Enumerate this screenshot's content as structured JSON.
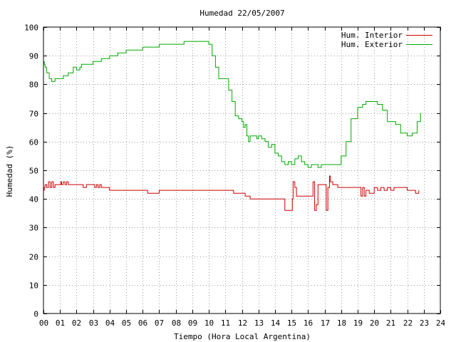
{
  "chart_data": {
    "type": "line",
    "title": "Humedad 22/05/2007",
    "xlabel": "Tiempo (Hora Local Argentina)",
    "ylabel": "Humedad (%)",
    "xlim": [
      0,
      24
    ],
    "ylim": [
      0,
      100
    ],
    "grid": true,
    "legend_position": "top-right",
    "x_ticks": [
      "00",
      "01",
      "02",
      "03",
      "04",
      "05",
      "06",
      "07",
      "08",
      "09",
      "10",
      "11",
      "12",
      "13",
      "14",
      "15",
      "16",
      "17",
      "18",
      "19",
      "20",
      "21",
      "22",
      "23",
      "24"
    ],
    "y_ticks": [
      "0",
      "10",
      "20",
      "30",
      "40",
      "50",
      "60",
      "70",
      "80",
      "90",
      "100"
    ],
    "series": [
      {
        "name": "Hum. Interior",
        "color": "#cc0000",
        "x": [
          0.0,
          0.05,
          0.1,
          0.2,
          0.3,
          0.4,
          0.5,
          0.6,
          0.7,
          1.0,
          1.05,
          1.1,
          1.2,
          1.3,
          1.4,
          1.5,
          1.6,
          2.0,
          2.4,
          2.6,
          3.0,
          3.1,
          3.2,
          3.3,
          3.4,
          3.5,
          3.6,
          4.0,
          6.0,
          6.3,
          7.0,
          8.0,
          9.0,
          10.0,
          11.0,
          11.5,
          12.0,
          12.2,
          12.5,
          13.0,
          14.0,
          14.5,
          14.6,
          15.0,
          15.05,
          15.1,
          15.2,
          15.3,
          15.5,
          15.8,
          16.0,
          16.1,
          16.2,
          16.3,
          16.4,
          16.5,
          16.6,
          17.0,
          17.1,
          17.2,
          17.3,
          17.35,
          17.5,
          17.8,
          18.0,
          18.5,
          19.0,
          19.2,
          19.3,
          19.4,
          19.5,
          19.7,
          20.0,
          20.2,
          20.4,
          20.6,
          20.8,
          21.0,
          21.2,
          21.5,
          21.8,
          22.0,
          22.3,
          22.5,
          22.7
        ],
        "y": [
          43,
          44,
          45,
          44,
          46,
          44,
          46,
          44,
          45,
          45,
          46,
          45,
          46,
          45,
          46,
          45,
          45,
          45,
          44,
          45,
          45,
          44,
          45,
          44,
          45,
          44,
          44,
          43,
          43,
          42,
          43,
          43,
          43,
          43,
          43,
          42,
          42,
          41,
          40,
          40,
          40,
          40,
          36,
          36,
          40,
          46,
          44,
          41,
          41,
          41,
          41,
          41,
          41,
          46,
          36,
          38,
          45,
          45,
          36,
          44,
          48,
          46,
          45,
          44,
          44,
          44,
          44,
          41,
          44,
          41,
          43,
          42,
          44,
          43,
          44,
          43,
          44,
          43,
          44,
          44,
          44,
          43,
          43,
          42,
          43
        ]
      },
      {
        "name": "Hum. Exterior",
        "color": "#00aa00",
        "x": [
          0.0,
          0.05,
          0.1,
          0.2,
          0.35,
          0.5,
          0.7,
          1.0,
          1.2,
          1.5,
          1.8,
          2.0,
          2.2,
          2.3,
          2.5,
          3.0,
          3.5,
          4.0,
          4.5,
          5.0,
          5.5,
          6.0,
          6.5,
          7.0,
          7.5,
          8.0,
          8.5,
          9.0,
          9.5,
          10.0,
          10.2,
          10.4,
          10.6,
          10.8,
          11.0,
          11.2,
          11.4,
          11.6,
          11.8,
          12.0,
          12.1,
          12.2,
          12.3,
          12.4,
          12.5,
          12.7,
          12.9,
          13.0,
          13.2,
          13.4,
          13.6,
          13.8,
          14.0,
          14.2,
          14.4,
          14.6,
          14.8,
          15.0,
          15.2,
          15.4,
          15.6,
          15.8,
          16.0,
          16.2,
          16.4,
          16.6,
          16.8,
          17.0,
          17.5,
          18.0,
          18.3,
          18.6,
          19.0,
          19.3,
          19.5,
          20.0,
          20.2,
          20.5,
          20.8,
          21.0,
          21.3,
          21.6,
          22.0,
          22.3,
          22.6,
          22.8
        ],
        "y": [
          88,
          87,
          86,
          84,
          82,
          81,
          82,
          82,
          83,
          84,
          86,
          85,
          86,
          87,
          87,
          88,
          89,
          90,
          91,
          92,
          92,
          93,
          93,
          94,
          94,
          94,
          95,
          95,
          95,
          94,
          90,
          86,
          82,
          82,
          82,
          78,
          74,
          69,
          68,
          67,
          65,
          66,
          62,
          60,
          62,
          62,
          61,
          62,
          61,
          60,
          58,
          59,
          56,
          55,
          53,
          52,
          53,
          52,
          54,
          55,
          53,
          52,
          51,
          52,
          52,
          51,
          52,
          52,
          52,
          55,
          60,
          68,
          72,
          73,
          74,
          74,
          73,
          71,
          67,
          67,
          66,
          63,
          62,
          63,
          67,
          70
        ]
      }
    ]
  }
}
